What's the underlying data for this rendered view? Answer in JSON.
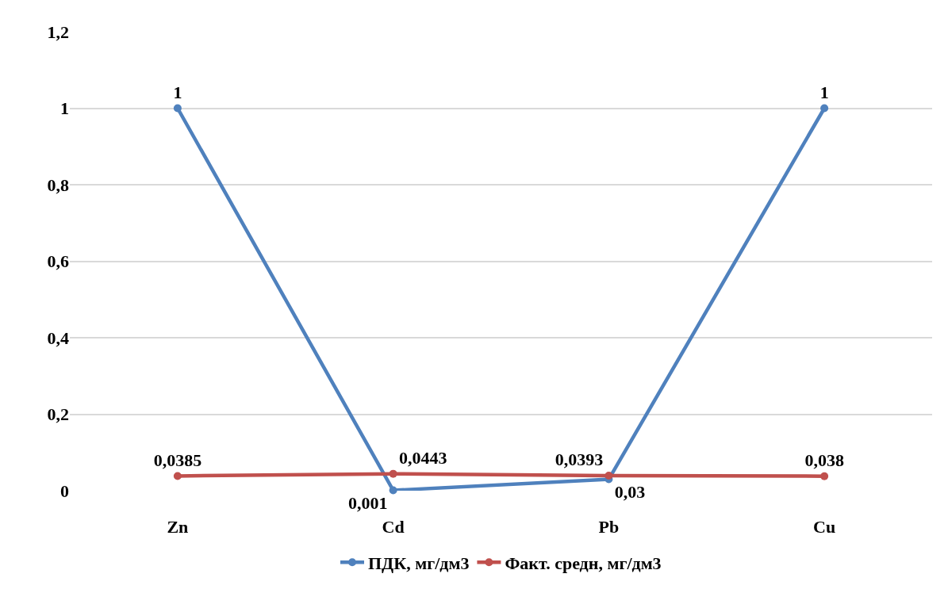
{
  "chart_data": {
    "type": "line",
    "categories": [
      "Zn",
      "Cd",
      "Pb",
      "Cu"
    ],
    "series": [
      {
        "name": "ПДК, мг/дм3",
        "color": "#4f81bd",
        "values": [
          1,
          0.001,
          0.03,
          1
        ],
        "value_labels": [
          "1",
          "0,001",
          "0,03",
          "1"
        ]
      },
      {
        "name": "Факт. средн, мг/дм3",
        "color": "#c0504d",
        "values": [
          0.0385,
          0.0443,
          0.0393,
          0.038
        ],
        "value_labels": [
          "0,0385",
          "0,0443",
          "0,0393",
          "0,038"
        ]
      }
    ],
    "ylim": [
      0,
      1.2
    ],
    "yticks": [
      0,
      {
        "value": 0.2,
        "label": "0,2"
      },
      {
        "value": 0.4,
        "label": "0,4"
      },
      {
        "value": 0.6,
        "label": "0,6"
      },
      {
        "value": 0.8,
        "label": "0,8"
      },
      1,
      {
        "value": 1.2,
        "label": "1,2"
      }
    ],
    "grid": "y",
    "legend": "bottom",
    "marker": "circle",
    "line_style": "solid"
  }
}
